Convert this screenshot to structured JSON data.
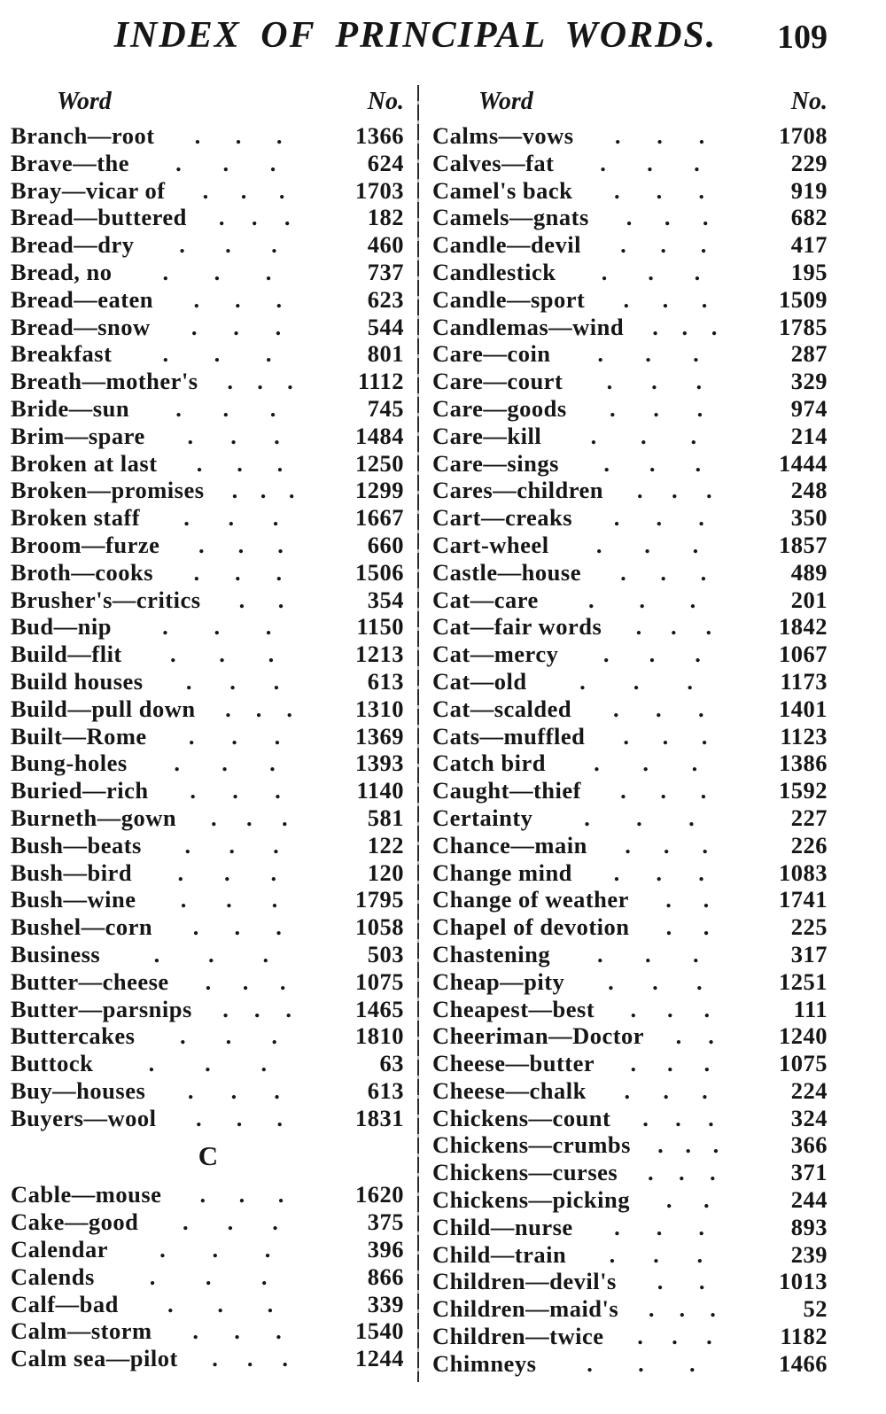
{
  "page_header": {
    "title": "INDEX OF PRINCIPAL WORDS.",
    "page_number": "109"
  },
  "table": {
    "word_header": "Word",
    "no_header": "No.",
    "left_column": {
      "entries": [
        {
          "word": "Branch—root",
          "no": "1366"
        },
        {
          "word": "Brave—the",
          "no": "624"
        },
        {
          "word": "Bray—vicar of",
          "no": "1703"
        },
        {
          "word": "Bread—buttered",
          "no": "182"
        },
        {
          "word": "Bread—dry",
          "no": "460"
        },
        {
          "word": "Bread, no",
          "no": "737"
        },
        {
          "word": "Bread—eaten",
          "no": "623"
        },
        {
          "word": "Bread—snow",
          "no": "544"
        },
        {
          "word": "Breakfast",
          "no": "801"
        },
        {
          "word": "Breath—mother's",
          "no": "1112"
        },
        {
          "word": "Bride—sun",
          "no": "745"
        },
        {
          "word": "Brim—spare",
          "no": "1484"
        },
        {
          "word": "Broken at last",
          "no": "1250"
        },
        {
          "word": "Broken—promises",
          "no": "1299"
        },
        {
          "word": "Broken staff",
          "no": "1667"
        },
        {
          "word": "Broom—furze",
          "no": "660"
        },
        {
          "word": "Broth—cooks",
          "no": "1506"
        },
        {
          "word": "Brusher's—critics",
          "no": "354"
        },
        {
          "word": "Bud—nip",
          "no": "1150"
        },
        {
          "word": "Build—flit",
          "no": "1213"
        },
        {
          "word": "Build houses",
          "no": "613"
        },
        {
          "word": "Build—pull down",
          "no": "1310"
        },
        {
          "word": "Built—Rome",
          "no": "1369"
        },
        {
          "word": "Bung-holes",
          "no": "1393"
        },
        {
          "word": "Buried—rich",
          "no": "1140"
        },
        {
          "word": "Burneth—gown",
          "no": "581"
        },
        {
          "word": "Bush—beats",
          "no": "122"
        },
        {
          "word": "Bush—bird",
          "no": "120"
        },
        {
          "word": "Bush—wine",
          "no": "1795"
        },
        {
          "word": "Bushel—corn",
          "no": "1058"
        },
        {
          "word": "Business",
          "no": "503"
        },
        {
          "word": "Butter—cheese",
          "no": "1075"
        },
        {
          "word": "Butter—parsnips",
          "no": "1465"
        },
        {
          "word": "Buttercakes",
          "no": "1810"
        },
        {
          "word": "Buttock",
          "no": "63"
        },
        {
          "word": "Buy—houses",
          "no": "613"
        },
        {
          "word": "Buyers—wool",
          "no": "1831"
        },
        {
          "section": "C"
        },
        {
          "word": "Cable—mouse",
          "no": "1620"
        },
        {
          "word": "Cake—good",
          "no": "375"
        },
        {
          "word": "Calendar",
          "no": "396"
        },
        {
          "word": "Calends",
          "no": "866"
        },
        {
          "word": "Calf—bad",
          "no": "339"
        },
        {
          "word": "Calm—storm",
          "no": "1540"
        },
        {
          "word": "Calm sea—pilot",
          "no": "1244"
        }
      ]
    },
    "right_column": {
      "entries": [
        {
          "word": "Calms—vows",
          "no": "1708"
        },
        {
          "word": "Calves—fat",
          "no": "229"
        },
        {
          "word": "Camel's back",
          "no": "919"
        },
        {
          "word": "Camels—gnats",
          "no": "682"
        },
        {
          "word": "Candle—devil",
          "no": "417"
        },
        {
          "word": "Candlestick",
          "no": "195"
        },
        {
          "word": "Candle—sport",
          "no": "1509"
        },
        {
          "word": "Candlemas—wind",
          "no": "1785"
        },
        {
          "word": "Care—coin",
          "no": "287"
        },
        {
          "word": "Care—court",
          "no": "329"
        },
        {
          "word": "Care—goods",
          "no": "974"
        },
        {
          "word": "Care—kill",
          "no": "214"
        },
        {
          "word": "Care—sings",
          "no": "1444"
        },
        {
          "word": "Cares—children",
          "no": "248"
        },
        {
          "word": "Cart—creaks",
          "no": "350"
        },
        {
          "word": "Cart-wheel",
          "no": "1857"
        },
        {
          "word": "Castle—house",
          "no": "489"
        },
        {
          "word": "Cat—care",
          "no": "201"
        },
        {
          "word": "Cat—fair words",
          "no": "1842"
        },
        {
          "word": "Cat—mercy",
          "no": "1067"
        },
        {
          "word": "Cat—old",
          "no": "1173"
        },
        {
          "word": "Cat—scalded",
          "no": "1401"
        },
        {
          "word": "Cats—muffled",
          "no": "1123"
        },
        {
          "word": "Catch bird",
          "no": "1386"
        },
        {
          "word": "Caught—thief",
          "no": "1592"
        },
        {
          "word": "Certainty",
          "no": "227"
        },
        {
          "word": "Chance—main",
          "no": "226"
        },
        {
          "word": "Change mind",
          "no": "1083"
        },
        {
          "word": "Change of weather",
          "no": "1741"
        },
        {
          "word": "Chapel of devotion",
          "no": "225"
        },
        {
          "word": "Chastening",
          "no": "317"
        },
        {
          "word": "Cheap—pity",
          "no": "1251"
        },
        {
          "word": "Cheapest—best",
          "no": "111"
        },
        {
          "word": "Cheeriman—Doctor",
          "no": "1240"
        },
        {
          "word": "Cheese—butter",
          "no": "1075"
        },
        {
          "word": "Cheese—chalk",
          "no": "224"
        },
        {
          "word": "Chickens—count",
          "no": "324"
        },
        {
          "word": "Chickens—crumbs",
          "no": "366"
        },
        {
          "word": "Chickens—curses",
          "no": "371"
        },
        {
          "word": "Chickens—picking",
          "no": "244"
        },
        {
          "word": "Child—nurse",
          "no": "893"
        },
        {
          "word": "Child—train",
          "no": "239"
        },
        {
          "word": "Children—devil's",
          "no": "1013"
        },
        {
          "word": "Children—maid's",
          "no": "52"
        },
        {
          "word": "Children—twice",
          "no": "1182"
        },
        {
          "word": "Chimneys",
          "no": "1466"
        }
      ]
    }
  }
}
